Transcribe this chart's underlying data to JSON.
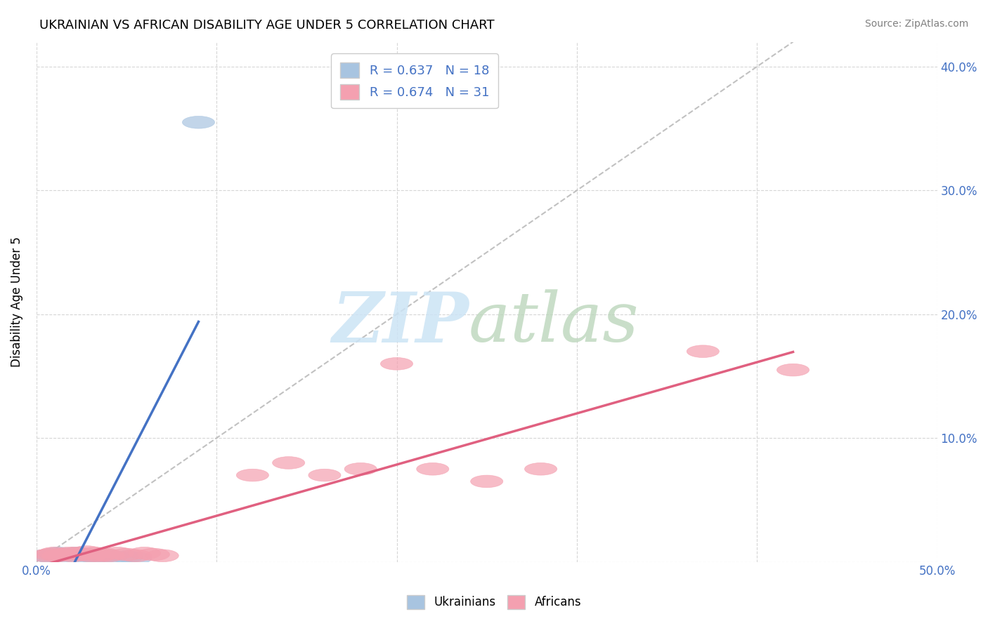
{
  "title": "UKRAINIAN VS AFRICAN DISABILITY AGE UNDER 5 CORRELATION CHART",
  "source": "Source: ZipAtlas.com",
  "ylabel": "Disability Age Under 5",
  "xlim": [
    0.0,
    0.5
  ],
  "ylim": [
    0.0,
    0.42
  ],
  "ukrainian_color": "#a8c4e0",
  "african_color": "#f4a0b0",
  "ukrainian_R": 0.637,
  "ukrainian_N": 18,
  "african_R": 0.674,
  "african_N": 31,
  "legend_text_color": "#4472c4",
  "background_color": "#ffffff",
  "grid_color": "#cccccc",
  "trendline_color_ukrainian": "#4472c4",
  "trendline_color_african": "#e06080",
  "trendline_diagonal_color": "#bbbbbb",
  "ukrainians_x": [
    0.005,
    0.008,
    0.01,
    0.012,
    0.015,
    0.018,
    0.02,
    0.022,
    0.025,
    0.028,
    0.03,
    0.032,
    0.035,
    0.04,
    0.045,
    0.05,
    0.055,
    0.09
  ],
  "ukrainians_y": [
    0.005,
    0.004,
    0.006,
    0.007,
    0.005,
    0.006,
    0.005,
    0.007,
    0.005,
    0.006,
    0.005,
    0.004,
    0.005,
    0.005,
    0.003,
    0.004,
    0.003,
    0.355
  ],
  "africans_x": [
    0.005,
    0.008,
    0.01,
    0.012,
    0.015,
    0.018,
    0.02,
    0.022,
    0.025,
    0.028,
    0.03,
    0.032,
    0.035,
    0.038,
    0.04,
    0.045,
    0.05,
    0.055,
    0.06,
    0.065,
    0.07,
    0.12,
    0.14,
    0.16,
    0.18,
    0.2,
    0.22,
    0.25,
    0.28,
    0.37,
    0.42
  ],
  "africans_y": [
    0.005,
    0.006,
    0.007,
    0.005,
    0.006,
    0.007,
    0.005,
    0.007,
    0.006,
    0.008,
    0.005,
    0.007,
    0.005,
    0.006,
    0.005,
    0.007,
    0.006,
    0.005,
    0.007,
    0.006,
    0.005,
    0.07,
    0.08,
    0.07,
    0.075,
    0.16,
    0.075,
    0.065,
    0.075,
    0.17,
    0.155
  ]
}
